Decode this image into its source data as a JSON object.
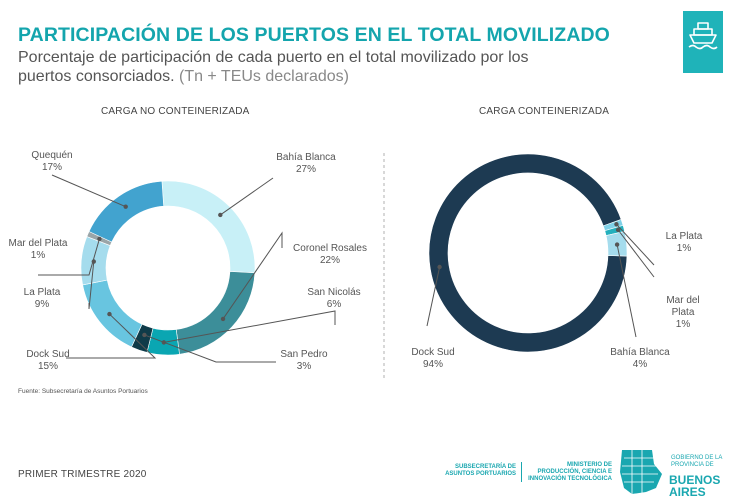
{
  "header": {
    "title": "PARTICIPACIÓN DE LOS PUERTOS EN EL TOTAL MOVILIZADO",
    "subtitle_main": "Porcentaje de participación de cada puerto en el total movilizado por los puertos consorciados.",
    "subtitle_note": "(Tn + TEUs declarados)",
    "icon": "ship-icon"
  },
  "chart_data": [
    {
      "type": "pie",
      "title": "CARGA NO CONTEINERIZADA",
      "labels": [
        "Bahía Blanca",
        "Coronel Rosales",
        "San Nicolás",
        "San Pedro",
        "Dock Sud",
        "La Plata",
        "Mar del Plata",
        "Quequén"
      ],
      "values": [
        27,
        22,
        6,
        3,
        15,
        9,
        1,
        17
      ],
      "value_labels": [
        "27%",
        "22%",
        "6%",
        "3%",
        "15%",
        "9%",
        "1%",
        "17%"
      ],
      "colors": [
        "#c8f0f7",
        "#3c8e99",
        "#0aa6b2",
        "#0f3b49",
        "#68c5e0",
        "#a5dced",
        "#9aa5a8",
        "#42a3cf"
      ],
      "hole": true
    },
    {
      "type": "pie",
      "title": "CARGA CONTEINERIZADA",
      "labels": [
        "Dock Sud",
        "La Plata",
        "Mar del Plata",
        "Bahía Blanca"
      ],
      "values": [
        94,
        1,
        1,
        4
      ],
      "value_labels": [
        "94%",
        "1%",
        "1%",
        "4%"
      ],
      "colors": [
        "#1d3a52",
        "#7fd1e8",
        "#24b0bd",
        "#a5dced"
      ],
      "hole": true
    }
  ],
  "footer": {
    "source": "Fuente: Subsecretaría de Asuntos Portuarios",
    "period": "PRIMER TRIMESTRE 2020",
    "org1": "SUBSECRETARÍA DE\nASUNTOS PORTUARIOS",
    "org2": "MINISTERIO DE\nPRODUCCIÓN, CIENCIA E\nINNOVACIÓN TECNOLÓGICA",
    "gov": "GOBIERNO DE LA\nPROVINCIA DE",
    "ba": "BUENOS\nAIRES",
    "icon": "buenos-aires-map-icon"
  }
}
